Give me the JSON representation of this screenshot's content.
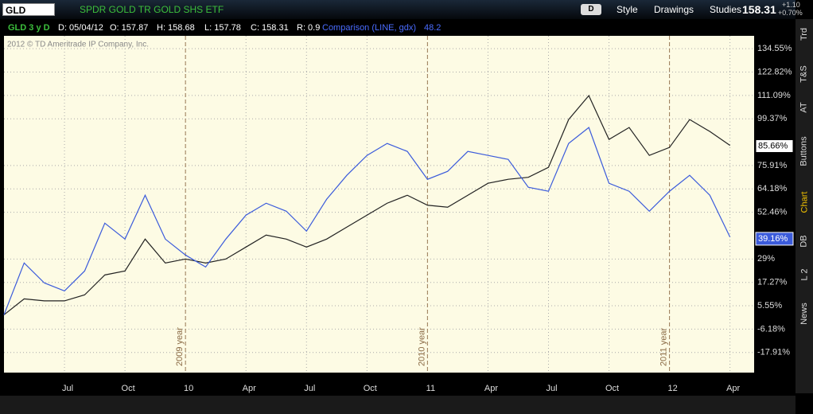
{
  "chart_data": {
    "type": "line",
    "x": [
      "2009-04",
      "2009-05",
      "2009-06",
      "2009-07",
      "2009-08",
      "2009-09",
      "2009-10",
      "2009-11",
      "2009-12",
      "2010-01",
      "2010-02",
      "2010-03",
      "2010-04",
      "2010-05",
      "2010-06",
      "2010-07",
      "2010-08",
      "2010-09",
      "2010-10",
      "2010-11",
      "2010-12",
      "2011-01",
      "2011-02",
      "2011-03",
      "2011-04",
      "2011-05",
      "2011-06",
      "2011-07",
      "2011-08",
      "2011-09",
      "2011-10",
      "2011-11",
      "2011-12",
      "2012-01",
      "2012-02",
      "2012-03",
      "2012-04"
    ],
    "series": [
      {
        "name": "GLD",
        "color": "#222222",
        "values": [
          1,
          9,
          8,
          8,
          11,
          21,
          23,
          39,
          27,
          29,
          27,
          29,
          35,
          41,
          39,
          35,
          39,
          45,
          51,
          57,
          61,
          56,
          55,
          61,
          67,
          69,
          70,
          75,
          99,
          111,
          89,
          95,
          81,
          85,
          99,
          93,
          86
        ],
        "current": {
          "value": 85.66,
          "label": "85.66%"
        }
      },
      {
        "color": "#3b5bdb",
        "values": [
          1,
          27,
          17,
          13,
          23,
          47,
          39,
          61,
          39,
          31,
          25,
          39,
          51,
          57,
          53,
          43,
          59,
          71,
          81,
          87,
          83,
          69,
          73,
          83,
          81,
          79,
          65,
          63,
          87,
          95,
          67,
          63,
          53,
          63,
          71,
          61,
          40
        ],
        "current": {
          "value": 39.16,
          "label": "39.16%"
        }
      }
    ],
    "xlim": [
      "2009-04",
      "2012-05"
    ],
    "xticks": [
      {
        "value": "2009-07",
        "label": "Jul"
      },
      {
        "value": "2009-10",
        "label": "Oct"
      },
      {
        "value": "2010-01",
        "label": "10"
      },
      {
        "value": "2010-04",
        "label": "Apr"
      },
      {
        "value": "2010-07",
        "label": "Jul"
      },
      {
        "value": "2010-10",
        "label": "Oct"
      },
      {
        "value": "2011-01",
        "label": "11"
      },
      {
        "value": "2011-04",
        "label": "Apr"
      },
      {
        "value": "2011-07",
        "label": "Jul"
      },
      {
        "value": "2011-10",
        "label": "Oct"
      },
      {
        "value": "2012-01",
        "label": "12"
      },
      {
        "value": "2012-04",
        "label": "Apr"
      }
    ],
    "ylim": [
      -28,
      141
    ],
    "yticks": [
      {
        "value": 134.55,
        "label": "134.55%"
      },
      {
        "value": 122.82,
        "label": "122.82%"
      },
      {
        "value": 111.09,
        "label": "111.09%"
      },
      {
        "value": 99.37,
        "label": "99.37%"
      },
      {
        "value": 75.91,
        "label": "75.91%"
      },
      {
        "value": 64.18,
        "label": "64.18%"
      },
      {
        "value": 52.46,
        "label": "52.46%"
      },
      {
        "value": 29,
        "label": "29%"
      },
      {
        "value": 17.27,
        "label": "17.27%"
      },
      {
        "value": 5.55,
        "label": "5.55%"
      },
      {
        "value": -6.18,
        "label": "-6.18%"
      },
      {
        "value": -17.91,
        "label": "-17.91%"
      }
    ],
    "grid": true,
    "year_markers": [
      {
        "x": "2010-01",
        "label": "2009 year"
      },
      {
        "x": "2011-01",
        "label": "2010 year"
      },
      {
        "x": "2012-01",
        "label": "2011 year"
      }
    ],
    "copyright": "2012 © TD Ameritrade IP Company, Inc."
  },
  "toolbar": {
    "description": "SPDR GOLD TR GOLD SHS ETF",
    "period": "D",
    "buttons": [
      "Style",
      "Drawings",
      "Studies"
    ],
    "last": "158.31",
    "change": "+1.10",
    "change_pct": "+0.70%"
  },
  "info_bar": {
    "study": "GLD 3 y D",
    "fields": [
      "D: 05/04/12",
      "O: 157.87",
      "H: 158.68",
      "L: 157.78",
      "C: 158.31",
      "R: 0.9"
    ],
    "comparison": "Comparison (LINE, gdx)",
    "comparison_value": "48.2"
  },
  "side_tabs": [
    "Trd",
    "T&S",
    "AT",
    "Buttons",
    "Chart",
    "DB",
    "L 2",
    "News"
  ]
}
